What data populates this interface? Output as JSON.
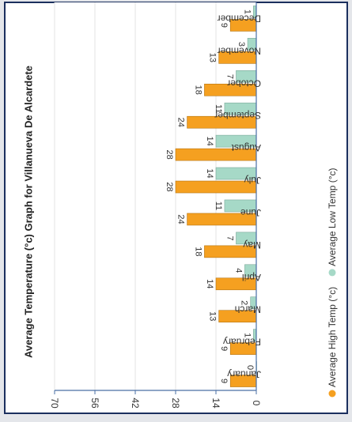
{
  "chart_data": {
    "type": "bar",
    "title": "Average Temperature (°c) Graph for Villanueva De Alcardete",
    "categories": [
      "January",
      "February",
      "March",
      "April",
      "May",
      "June",
      "July",
      "August",
      "September",
      "October",
      "November",
      "December"
    ],
    "series": [
      {
        "name": "Average High Temp (°c)",
        "color": "#f5a020",
        "values": [
          9,
          9,
          13,
          14,
          18,
          24,
          28,
          28,
          24,
          18,
          13,
          9
        ]
      },
      {
        "name": "Average Low Temp (°c)",
        "color": "#a6d9c7",
        "values": [
          0,
          1,
          2,
          4,
          7,
          11,
          14,
          14,
          11,
          7,
          3,
          1
        ]
      }
    ],
    "ylim": [
      0,
      70
    ],
    "yticks": [
      0,
      14,
      28,
      42,
      56,
      70
    ],
    "grid": true,
    "legend_position": "bottom"
  }
}
